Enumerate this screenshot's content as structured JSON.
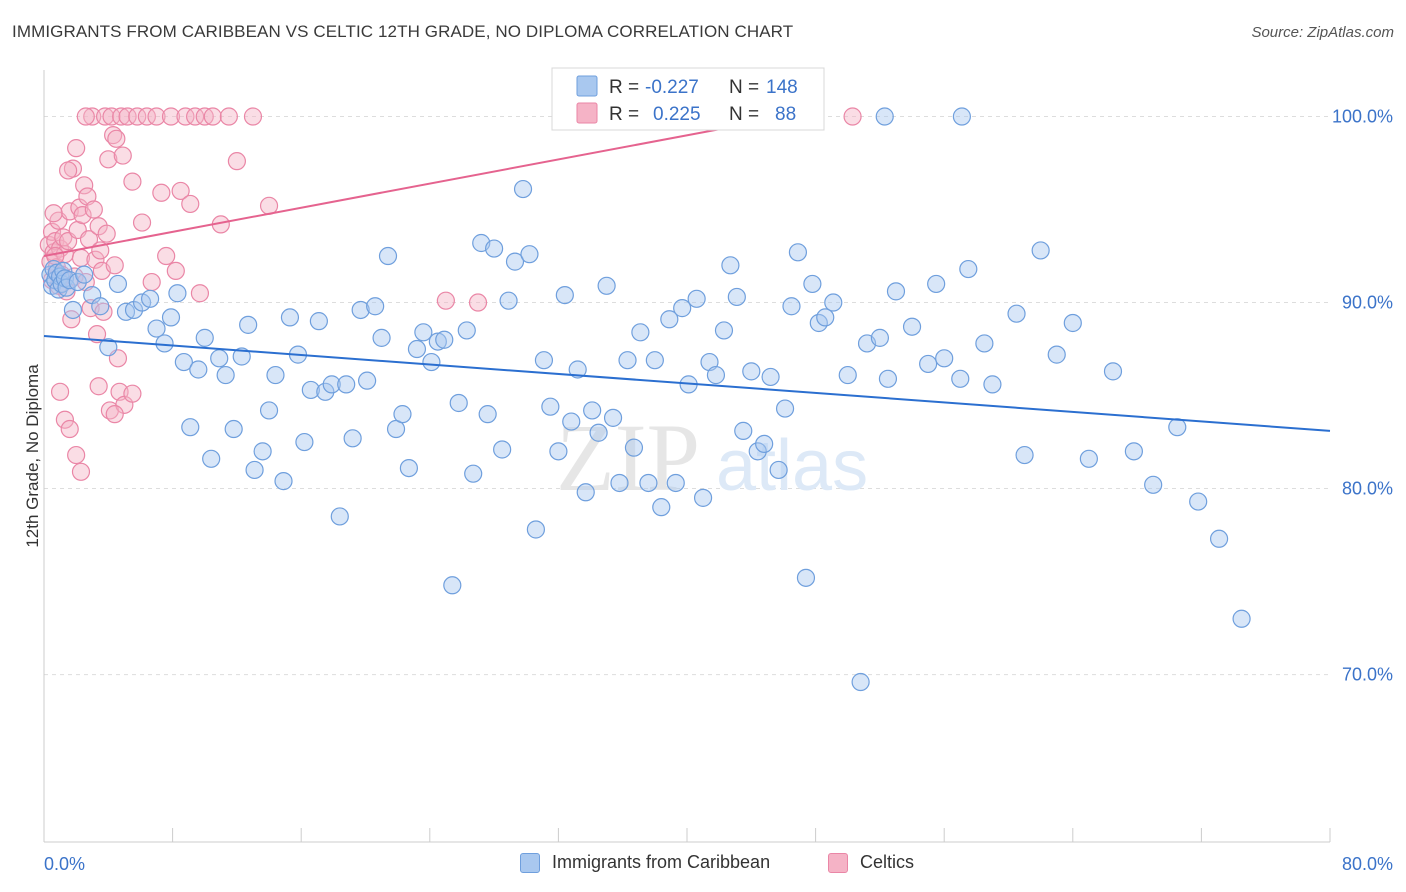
{
  "header": {
    "title": "IMMIGRANTS FROM CARIBBEAN VS CELTIC 12TH GRADE, NO DIPLOMA CORRELATION CHART",
    "source": "Source: ZipAtlas.com"
  },
  "watermark": {
    "zip": "ZIP",
    "atlas": "atlas"
  },
  "legend_top": {
    "rows": [
      {
        "r_label": "R =",
        "r_value": "-0.227",
        "n_label": "N =",
        "n_value": "148"
      },
      {
        "r_label": "R =",
        "r_value": "0.225",
        "n_label": "N =",
        "n_value": "88"
      }
    ]
  },
  "legend_bottom": {
    "items": [
      {
        "label": "Immigrants from Caribbean"
      },
      {
        "label": "Celtics"
      }
    ]
  },
  "colors": {
    "blue_fill": "#a9c8ef",
    "blue_stroke": "#6f9fdd",
    "blue_line": "#2b6fd0",
    "pink_fill": "#f5b3c6",
    "pink_stroke": "#ea86a6",
    "pink_line": "#e5638f",
    "tick_text": "#3b73c9",
    "grid": "#dddddd"
  },
  "chart_data": {
    "type": "scatter",
    "title": "IMMIGRANTS FROM CARIBBEAN VS CELTIC 12TH GRADE, NO DIPLOMA CORRELATION CHART",
    "xlabel": "",
    "ylabel": "12th Grade, No Diploma",
    "xlim": [
      0,
      80
    ],
    "ylim": [
      61,
      102.5
    ],
    "x_tick_labels": [
      "0.0%",
      "80.0%"
    ],
    "y_ticks": [
      70,
      80,
      90,
      100
    ],
    "y_tick_labels": [
      "70.0%",
      "80.0%",
      "90.0%",
      "100.0%"
    ],
    "grid": true,
    "series": [
      {
        "name": "Immigrants from Caribbean",
        "color": "#a9c8ef",
        "R": -0.227,
        "N": 148,
        "trend": {
          "x": [
            0,
            80
          ],
          "y": [
            88.2,
            83.1
          ]
        },
        "points": [
          [
            0.4,
            91.5
          ],
          [
            0.5,
            90.9
          ],
          [
            0.6,
            91.8
          ],
          [
            0.7,
            91.2
          ],
          [
            0.8,
            91.6
          ],
          [
            0.9,
            90.7
          ],
          [
            1.0,
            91.4
          ],
          [
            1.1,
            91.0
          ],
          [
            1.2,
            91.7
          ],
          [
            1.3,
            91.3
          ],
          [
            1.4,
            90.8
          ],
          [
            1.6,
            91.2
          ],
          [
            1.8,
            89.6
          ],
          [
            2.1,
            91.1
          ],
          [
            2.5,
            91.5
          ],
          [
            3.0,
            90.4
          ],
          [
            3.5,
            89.8
          ],
          [
            4.0,
            87.6
          ],
          [
            4.6,
            91.0
          ],
          [
            5.1,
            89.5
          ],
          [
            5.6,
            89.6
          ],
          [
            6.1,
            90.0
          ],
          [
            6.6,
            90.2
          ],
          [
            7.0,
            88.6
          ],
          [
            7.5,
            87.8
          ],
          [
            7.9,
            89.2
          ],
          [
            8.3,
            90.5
          ],
          [
            8.7,
            86.8
          ],
          [
            9.1,
            83.3
          ],
          [
            9.6,
            86.4
          ],
          [
            10.0,
            88.1
          ],
          [
            10.4,
            81.6
          ],
          [
            10.9,
            87.0
          ],
          [
            11.3,
            86.1
          ],
          [
            11.8,
            83.2
          ],
          [
            12.3,
            87.1
          ],
          [
            12.7,
            88.8
          ],
          [
            13.1,
            81.0
          ],
          [
            13.6,
            82.0
          ],
          [
            14.0,
            84.2
          ],
          [
            14.4,
            86.1
          ],
          [
            14.9,
            80.4
          ],
          [
            15.3,
            89.2
          ],
          [
            15.8,
            87.2
          ],
          [
            16.2,
            82.5
          ],
          [
            16.6,
            85.3
          ],
          [
            17.1,
            89.0
          ],
          [
            17.5,
            85.2
          ],
          [
            17.9,
            85.6
          ],
          [
            18.4,
            78.5
          ],
          [
            18.8,
            85.6
          ],
          [
            19.2,
            82.7
          ],
          [
            19.7,
            89.6
          ],
          [
            20.1,
            85.8
          ],
          [
            20.6,
            89.8
          ],
          [
            21.0,
            88.1
          ],
          [
            21.4,
            92.5
          ],
          [
            21.9,
            83.2
          ],
          [
            22.3,
            84.0
          ],
          [
            22.7,
            81.1
          ],
          [
            23.2,
            87.5
          ],
          [
            23.6,
            88.4
          ],
          [
            24.1,
            86.8
          ],
          [
            24.5,
            87.9
          ],
          [
            24.9,
            88.0
          ],
          [
            25.4,
            74.8
          ],
          [
            25.8,
            84.6
          ],
          [
            26.3,
            88.5
          ],
          [
            26.7,
            80.8
          ],
          [
            27.2,
            93.2
          ],
          [
            27.6,
            84.0
          ],
          [
            28.0,
            92.9
          ],
          [
            28.5,
            82.1
          ],
          [
            28.9,
            90.1
          ],
          [
            29.3,
            92.2
          ],
          [
            29.8,
            96.1
          ],
          [
            30.2,
            92.6
          ],
          [
            30.6,
            77.8
          ],
          [
            31.1,
            86.9
          ],
          [
            31.5,
            84.4
          ],
          [
            32.0,
            82.0
          ],
          [
            32.4,
            90.4
          ],
          [
            32.8,
            83.6
          ],
          [
            33.2,
            86.4
          ],
          [
            33.7,
            79.8
          ],
          [
            34.1,
            84.2
          ],
          [
            34.5,
            83.0
          ],
          [
            35.0,
            90.9
          ],
          [
            35.4,
            83.8
          ],
          [
            35.8,
            80.3
          ],
          [
            36.3,
            86.9
          ],
          [
            36.7,
            82.2
          ],
          [
            37.1,
            88.4
          ],
          [
            37.6,
            80.3
          ],
          [
            38.0,
            86.9
          ],
          [
            38.4,
            79.0
          ],
          [
            38.9,
            89.1
          ],
          [
            39.3,
            80.3
          ],
          [
            39.7,
            89.7
          ],
          [
            40.1,
            85.6
          ],
          [
            40.6,
            90.2
          ],
          [
            41.0,
            79.5
          ],
          [
            41.4,
            86.8
          ],
          [
            41.8,
            86.1
          ],
          [
            42.3,
            88.5
          ],
          [
            42.7,
            92.0
          ],
          [
            43.1,
            90.3
          ],
          [
            43.5,
            83.1
          ],
          [
            44.0,
            86.3
          ],
          [
            44.4,
            82.0
          ],
          [
            44.8,
            82.4
          ],
          [
            45.2,
            86.0
          ],
          [
            45.7,
            81.0
          ],
          [
            46.1,
            84.3
          ],
          [
            46.5,
            89.8
          ],
          [
            46.9,
            92.7
          ],
          [
            47.4,
            75.2
          ],
          [
            47.8,
            91.0
          ],
          [
            48.2,
            88.9
          ],
          [
            48.6,
            89.2
          ],
          [
            49.1,
            90.0
          ],
          [
            50.0,
            86.1
          ],
          [
            50.8,
            69.6
          ],
          [
            51.2,
            87.8
          ],
          [
            52.0,
            88.1
          ],
          [
            52.5,
            85.9
          ],
          [
            53.0,
            90.6
          ],
          [
            54.0,
            88.7
          ],
          [
            55.0,
            86.7
          ],
          [
            55.5,
            91.0
          ],
          [
            56.0,
            87.0
          ],
          [
            57.0,
            85.9
          ],
          [
            57.5,
            91.8
          ],
          [
            58.5,
            87.8
          ],
          [
            59.0,
            85.6
          ],
          [
            60.5,
            89.4
          ],
          [
            61.0,
            81.8
          ],
          [
            62.0,
            92.8
          ],
          [
            63.0,
            87.2
          ],
          [
            64.0,
            88.9
          ],
          [
            65.0,
            81.6
          ],
          [
            66.5,
            86.3
          ],
          [
            67.8,
            82.0
          ],
          [
            69.0,
            80.2
          ],
          [
            70.5,
            83.3
          ],
          [
            71.8,
            79.3
          ],
          [
            73.1,
            77.3
          ],
          [
            74.5,
            73.0
          ],
          [
            52.3,
            100.0
          ],
          [
            57.1,
            100.0
          ]
        ]
      },
      {
        "name": "Celtics",
        "color": "#f5b3c6",
        "R": 0.225,
        "N": 88,
        "trend": {
          "x": [
            0,
            45
          ],
          "y": [
            92.5,
            99.8
          ]
        },
        "points": [
          [
            0.3,
            93.1
          ],
          [
            0.4,
            92.2
          ],
          [
            0.5,
            93.8
          ],
          [
            0.5,
            91.2
          ],
          [
            0.6,
            92.7
          ],
          [
            0.7,
            93.3
          ],
          [
            0.8,
            91.9
          ],
          [
            0.9,
            94.4
          ],
          [
            1.0,
            92.9
          ],
          [
            1.1,
            91.5
          ],
          [
            1.2,
            93.5
          ],
          [
            1.3,
            92.6
          ],
          [
            1.4,
            90.6
          ],
          [
            1.5,
            93.3
          ],
          [
            1.6,
            94.9
          ],
          [
            1.7,
            89.1
          ],
          [
            1.8,
            97.2
          ],
          [
            1.9,
            91.4
          ],
          [
            2.0,
            98.3
          ],
          [
            2.1,
            93.9
          ],
          [
            2.2,
            95.1
          ],
          [
            2.3,
            92.4
          ],
          [
            2.4,
            94.7
          ],
          [
            2.5,
            96.3
          ],
          [
            2.6,
            91.1
          ],
          [
            2.7,
            95.7
          ],
          [
            2.8,
            93.4
          ],
          [
            2.9,
            89.7
          ],
          [
            3.0,
            100.0
          ],
          [
            3.1,
            95.0
          ],
          [
            3.2,
            92.3
          ],
          [
            3.3,
            88.3
          ],
          [
            3.4,
            94.1
          ],
          [
            3.5,
            92.8
          ],
          [
            3.6,
            91.7
          ],
          [
            3.7,
            89.5
          ],
          [
            3.8,
            100.0
          ],
          [
            3.9,
            93.7
          ],
          [
            4.0,
            97.7
          ],
          [
            4.1,
            84.2
          ],
          [
            4.2,
            100.0
          ],
          [
            4.3,
            99.0
          ],
          [
            4.4,
            92.0
          ],
          [
            4.5,
            98.8
          ],
          [
            4.6,
            87.0
          ],
          [
            4.7,
            85.2
          ],
          [
            4.8,
            100.0
          ],
          [
            4.9,
            97.9
          ],
          [
            5.0,
            84.5
          ],
          [
            5.2,
            100.0
          ],
          [
            5.5,
            96.5
          ],
          [
            5.8,
            100.0
          ],
          [
            6.1,
            94.3
          ],
          [
            6.4,
            100.0
          ],
          [
            6.7,
            91.1
          ],
          [
            7.0,
            100.0
          ],
          [
            7.3,
            95.9
          ],
          [
            7.6,
            92.5
          ],
          [
            7.9,
            100.0
          ],
          [
            8.2,
            91.7
          ],
          [
            8.5,
            96.0
          ],
          [
            8.8,
            100.0
          ],
          [
            9.1,
            95.3
          ],
          [
            9.4,
            100.0
          ],
          [
            9.7,
            90.5
          ],
          [
            10.0,
            100.0
          ],
          [
            10.5,
            100.0
          ],
          [
            11.0,
            94.2
          ],
          [
            11.5,
            100.0
          ],
          [
            12.0,
            97.6
          ],
          [
            13.0,
            100.0
          ],
          [
            14.0,
            95.2
          ],
          [
            25.0,
            90.1
          ],
          [
            27.0,
            90.0
          ],
          [
            1.0,
            85.2
          ],
          [
            1.3,
            83.7
          ],
          [
            1.6,
            83.2
          ],
          [
            2.0,
            81.8
          ],
          [
            2.3,
            80.9
          ],
          [
            0.6,
            94.8
          ],
          [
            0.9,
            90.9
          ],
          [
            1.5,
            97.1
          ],
          [
            2.6,
            100.0
          ],
          [
            3.4,
            85.5
          ],
          [
            4.4,
            84.0
          ],
          [
            5.5,
            85.1
          ],
          [
            0.7,
            92.5
          ],
          [
            50.3,
            100.0
          ]
        ]
      }
    ]
  }
}
